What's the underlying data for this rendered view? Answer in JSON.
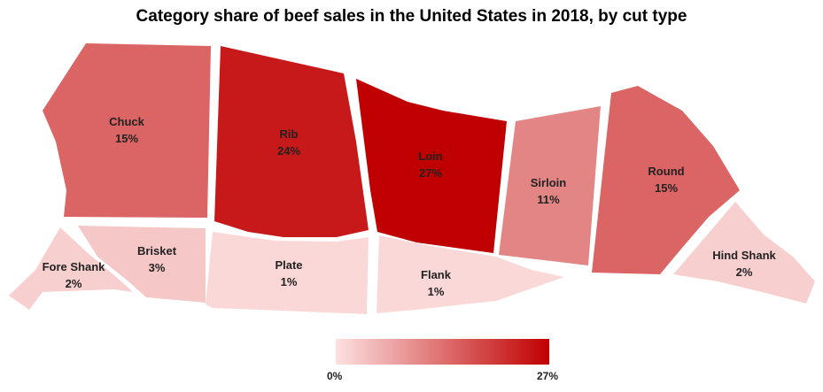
{
  "chart_data": {
    "type": "choropleth",
    "title": "Category share of beef sales in the United States in 2018, by cut type",
    "unit": "%",
    "cuts": [
      {
        "name": "Chuck",
        "value": 15,
        "label": "15%"
      },
      {
        "name": "Rib",
        "value": 24,
        "label": "24%"
      },
      {
        "name": "Loin",
        "value": 27,
        "label": "27%"
      },
      {
        "name": "Sirloin",
        "value": 11,
        "label": "11%"
      },
      {
        "name": "Round",
        "value": 15,
        "label": "15%"
      },
      {
        "name": "Hind Shank",
        "value": 2,
        "label": "2%"
      },
      {
        "name": "Flank",
        "value": 1,
        "label": "1%"
      },
      {
        "name": "Plate",
        "value": 1,
        "label": "1%"
      },
      {
        "name": "Brisket",
        "value": 3,
        "label": "3%"
      },
      {
        "name": "Fore Shank",
        "value": 2,
        "label": "2%"
      }
    ],
    "color_scale": {
      "min": 0,
      "max": 27,
      "min_label": "0%",
      "max_label": "27%",
      "min_color": "#fde0e0",
      "max_color": "#c00000"
    }
  }
}
